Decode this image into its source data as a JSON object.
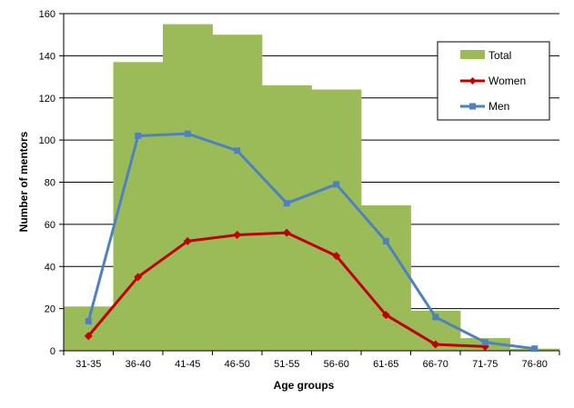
{
  "chart_data": {
    "type": "bar",
    "xlabel": "Age groups",
    "ylabel": "Number of mentors",
    "categories": [
      "31-35",
      "36-40",
      "41-45",
      "46-50",
      "51-55",
      "56-60",
      "61-65",
      "66-70",
      "71-75",
      "76-80"
    ],
    "ylim": [
      0,
      160
    ],
    "yticks": [
      0,
      20,
      40,
      60,
      80,
      100,
      120,
      140,
      160
    ],
    "grid": true,
    "legend_position": "top-right",
    "series": [
      {
        "name": "Total",
        "type": "bar",
        "color": "#9BBB59",
        "values": [
          21,
          137,
          155,
          150,
          126,
          124,
          69,
          19,
          6,
          1
        ]
      },
      {
        "name": "Women",
        "type": "line",
        "marker": "diamond",
        "color": "#C00000",
        "values": [
          7,
          35,
          52,
          55,
          56,
          45,
          17,
          3,
          2,
          null
        ]
      },
      {
        "name": "Men",
        "type": "line",
        "marker": "square",
        "color": "#4F81BD",
        "values": [
          14,
          102,
          103,
          95,
          70,
          79,
          52,
          16,
          4,
          1
        ]
      }
    ]
  }
}
